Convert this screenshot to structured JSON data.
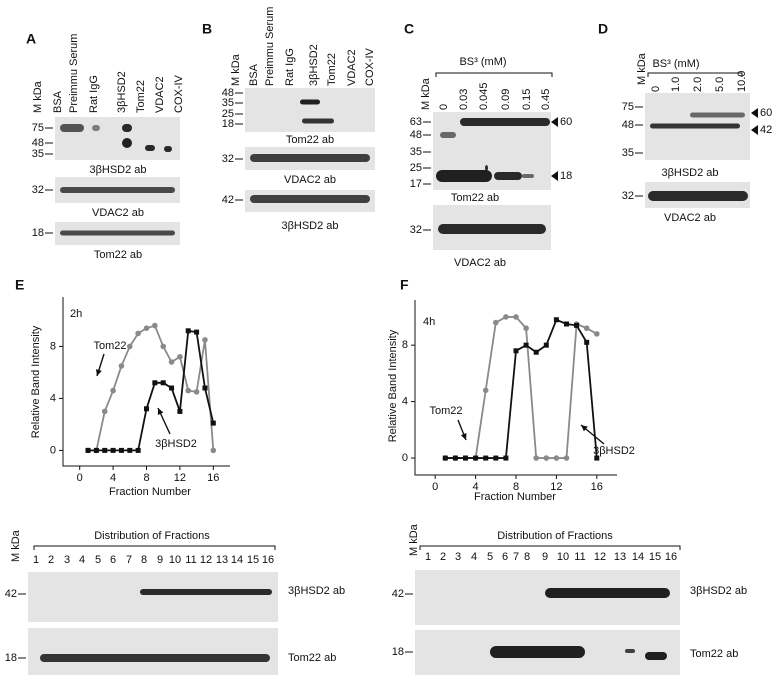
{
  "chart_data": [
    {
      "type": "line",
      "panel": "E",
      "label": "2h",
      "x_label": "Fraction Number",
      "y_label": "Relative Band Intensity",
      "x": [
        1,
        2,
        3,
        4,
        5,
        6,
        7,
        8,
        9,
        10,
        11,
        12,
        13,
        14,
        15,
        16
      ],
      "xlim": [
        -2,
        18
      ],
      "xticks": [
        0,
        4,
        8,
        12,
        16
      ],
      "ylim": [
        -1.2,
        11.8
      ],
      "yticks": [
        0,
        4,
        8
      ],
      "series": [
        {
          "name": "Tom22",
          "color": "#8a8a8a",
          "marker": "circle",
          "values": [
            0,
            0,
            3,
            4.6,
            6.5,
            8,
            9,
            9.4,
            9.6,
            8,
            6.8,
            7.2,
            4.6,
            4.5,
            8.5,
            0
          ]
        },
        {
          "name": "3βHSD2",
          "color": "#111111",
          "marker": "square",
          "values": [
            0,
            0,
            0,
            0,
            0,
            0,
            0,
            3.2,
            5.2,
            5.2,
            4.8,
            3,
            9.2,
            9.1,
            4.8,
            2.1
          ]
        }
      ]
    },
    {
      "type": "line",
      "panel": "F",
      "label": "4h",
      "x_label": "Fraction Number",
      "y_label": "Relative Band Intensity",
      "x": [
        1,
        2,
        3,
        4,
        5,
        6,
        7,
        8,
        9,
        10,
        11,
        12,
        13,
        14,
        15,
        16
      ],
      "xlim": [
        -2,
        18
      ],
      "xticks": [
        0,
        4,
        8,
        12,
        16
      ],
      "ylim": [
        -1.2,
        11.2
      ],
      "yticks": [
        0,
        4,
        8
      ],
      "series": [
        {
          "name": "Tom22",
          "color": "#8a8a8a",
          "marker": "circle",
          "values": [
            0,
            0,
            0,
            0,
            4.8,
            9.6,
            10,
            10,
            9.2,
            0,
            0,
            0,
            0,
            9.5,
            9.2,
            8.8
          ]
        },
        {
          "name": "3βHSD2",
          "color": "#111111",
          "marker": "square",
          "values": [
            0,
            0,
            0,
            0,
            0,
            0,
            0,
            7.6,
            8,
            7.5,
            8,
            9.8,
            9.5,
            9.4,
            8.2,
            0
          ]
        }
      ]
    }
  ],
  "panels": {
    "A": {
      "letter": "A",
      "mw_header": "M kDa",
      "lanes": [
        "BSA",
        "Preimmu Serum",
        "Rat IgG",
        "3βHSD2",
        "Tom22",
        "VDAC2",
        "COX-IV"
      ],
      "blots": [
        {
          "markers": [
            "75",
            "48",
            "35"
          ],
          "label": "3βHSD2 ab"
        },
        {
          "markers": [
            "32"
          ],
          "label": "VDAC2 ab"
        },
        {
          "markers": [
            "18"
          ],
          "label": "Tom22 ab"
        }
      ]
    },
    "B": {
      "letter": "B",
      "mw_header": "M kDa",
      "lanes": [
        "BSA",
        "Preimmu Serum",
        "Rat IgG",
        "3βHSD2",
        "Tom22",
        "VDAC2",
        "COX-IV"
      ],
      "blots": [
        {
          "markers": [
            "48",
            "35",
            "25",
            "18"
          ],
          "label": "Tom22 ab"
        },
        {
          "markers": [
            "32"
          ],
          "label": "VDAC2 ab"
        },
        {
          "markers": [
            "42"
          ],
          "label": "3βHSD2 ab"
        }
      ]
    },
    "C": {
      "letter": "C",
      "mw_header": "M kDa",
      "reagent": "BS³ (mM)",
      "lanes": [
        "0",
        "0.03",
        "0.045",
        "0.09",
        "0.15",
        "0.45"
      ],
      "blots": [
        {
          "markers": [
            "63",
            "48",
            "35",
            "25",
            "17"
          ],
          "label": "Tom22 ab",
          "arrows": [
            "60",
            "18"
          ]
        },
        {
          "markers": [
            "32"
          ],
          "label": "VDAC2 ab"
        }
      ]
    },
    "D": {
      "letter": "D",
      "mw_header": "M kDa",
      "reagent": "BS³ (mM)",
      "lanes": [
        "0",
        "1.0",
        "2.0",
        "5.0",
        "10.0"
      ],
      "blots": [
        {
          "markers": [
            "75",
            "48",
            "35"
          ],
          "label": "3βHSD2 ab",
          "arrows": [
            "60",
            "42"
          ]
        },
        {
          "markers": [
            "32"
          ],
          "label": "VDAC2 ab"
        }
      ]
    },
    "E_blot": {
      "mw_header": "M kDa",
      "heading": "Distribution of Fractions",
      "lanes": [
        "1",
        "2",
        "3",
        "4",
        "5",
        "6",
        "7",
        "8",
        "9",
        "10",
        "11",
        "12",
        "13",
        "14",
        "15",
        "16"
      ],
      "blots": [
        {
          "markers": [
            "42"
          ],
          "label": "3βHSD2 ab"
        },
        {
          "markers": [
            "18"
          ],
          "label": "Tom22 ab"
        }
      ]
    },
    "F_blot": {
      "mw_header": "M kDa",
      "heading": "Distribution of Fractions",
      "lanes": [
        "1",
        "2",
        "3",
        "4",
        "5",
        "6",
        "7",
        "8",
        "9",
        "10",
        "11",
        "12",
        "13",
        "14",
        "15",
        "16"
      ],
      "blots": [
        {
          "markers": [
            "42"
          ],
          "label": "3βHSD2 ab"
        },
        {
          "markers": [
            "18"
          ],
          "label": "Tom22 ab"
        }
      ]
    }
  }
}
